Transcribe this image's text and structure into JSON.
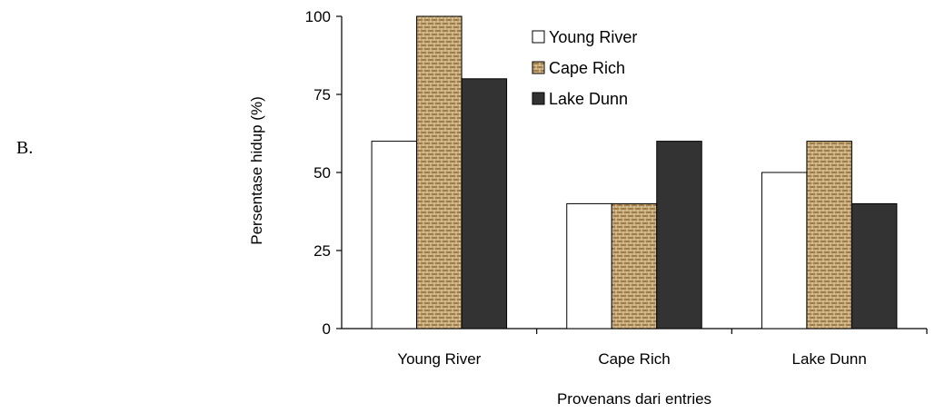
{
  "panel_label": "B.",
  "colors": {
    "young_river": "#ffffff",
    "cape_rich": "#c8aa78",
    "lake_dunn": "#333333",
    "outline": "#000000"
  },
  "chart_data": {
    "type": "bar",
    "categories": [
      "Young River",
      "Cape Rich",
      "Lake Dunn"
    ],
    "series": [
      {
        "name": "Young River",
        "values": [
          60,
          40,
          50
        ],
        "fill": "solid-white"
      },
      {
        "name": "Cape Rich",
        "values": [
          100,
          40,
          60
        ],
        "fill": "burlap-texture"
      },
      {
        "name": "Lake Dunn",
        "values": [
          80,
          60,
          40
        ],
        "fill": "solid-dark-gray"
      }
    ],
    "xlabel": "Provenans dari entries",
    "ylabel": "Persentase hidup (%)",
    "ylim": [
      0,
      100
    ],
    "yticks": [
      0,
      25,
      50,
      75,
      100
    ],
    "ytick_labels": [
      "0",
      "25",
      "50",
      "75",
      "100"
    ],
    "grid": false,
    "legend_position": "top-center"
  }
}
